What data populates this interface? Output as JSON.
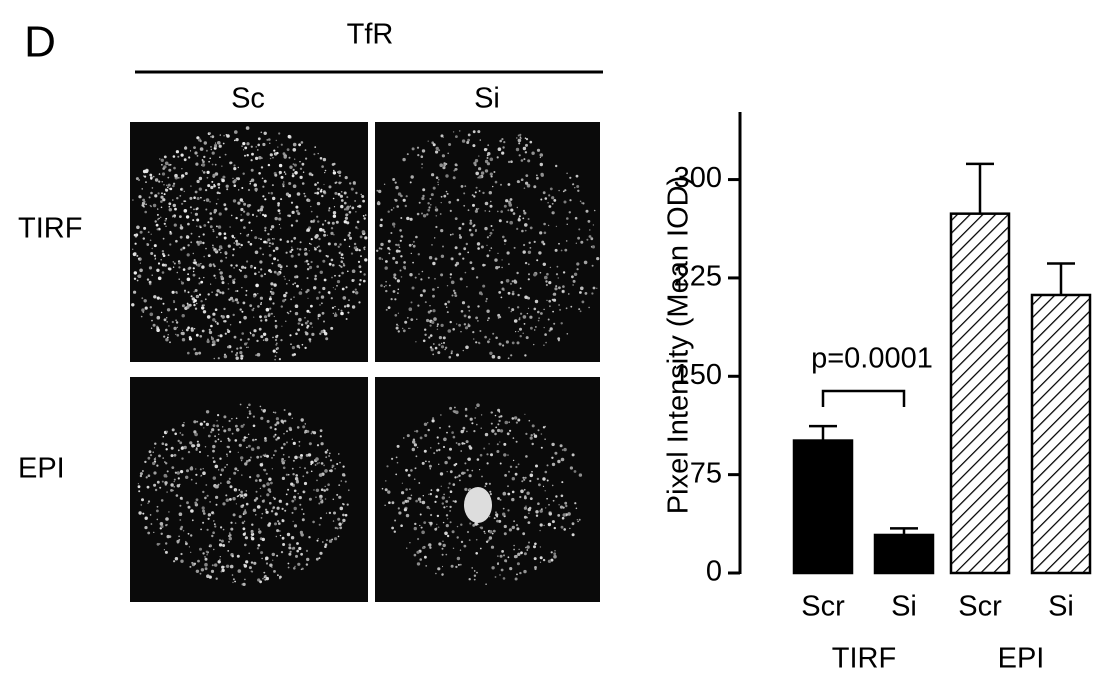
{
  "panel_label": "D",
  "images": {
    "title": "TfR",
    "columns": [
      "Sc",
      "Si"
    ],
    "rows": [
      "TIRF",
      "EPI"
    ]
  },
  "chart_data": {
    "type": "bar",
    "y_label": "Pixel Intensity (Mean IOD)",
    "categories": [
      "Scr",
      "Si",
      "Scr",
      "Si"
    ],
    "groups": [
      "TIRF",
      "EPI"
    ],
    "values": [
      101,
      29,
      274,
      212
    ],
    "errors": [
      11,
      5,
      38,
      24
    ],
    "bar_styles": [
      "solid",
      "solid",
      "hatched",
      "hatched"
    ],
    "color": "#000000",
    "ylim": [
      0,
      350
    ],
    "yticks": [
      0,
      75,
      150,
      225,
      300
    ],
    "annotation": "p=0.0001"
  }
}
